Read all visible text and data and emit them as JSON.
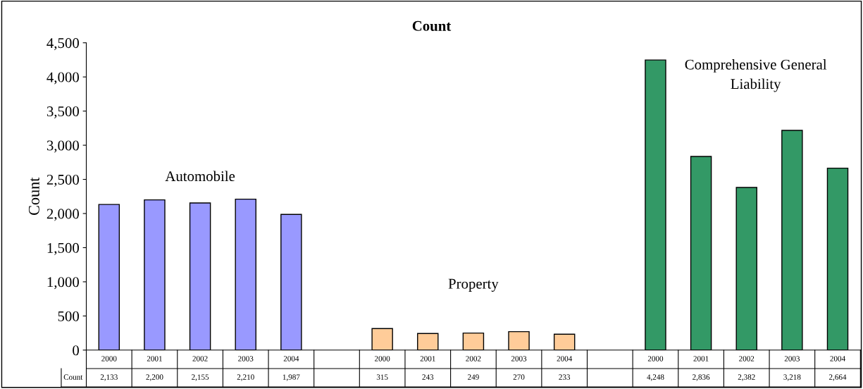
{
  "chart_data": {
    "type": "bar",
    "title": "Count",
    "ylabel": "Count",
    "categories": [
      "2000",
      "2001",
      "2002",
      "2003",
      "2004",
      null,
      "2000",
      "2001",
      "2002",
      "2003",
      "2004",
      null,
      "2000",
      "2001",
      "2002",
      "2003",
      "2004"
    ],
    "series": [
      {
        "name": "Count",
        "values": [
          2133,
          2200,
          2155,
          2210,
          1987,
          null,
          315,
          243,
          249,
          270,
          233,
          null,
          4248,
          2836,
          2382,
          3218,
          2664
        ],
        "value_labels": [
          "2,133",
          "2,200",
          "2,155",
          "2,210",
          "1,987",
          null,
          "315",
          "243",
          "249",
          "270",
          "233",
          null,
          "4,248",
          "2,836",
          "2,382",
          "3,218",
          "2,664"
        ],
        "colors": [
          "#9999ff",
          "#9999ff",
          "#9999ff",
          "#9999ff",
          "#9999ff",
          null,
          "#ffcc99",
          "#ffcc99",
          "#ffcc99",
          "#ffcc99",
          "#ffcc99",
          null,
          "#339966",
          "#339966",
          "#339966",
          "#339966",
          "#339966"
        ]
      }
    ],
    "ylim": [
      0,
      4500
    ],
    "yticks": [
      0,
      500,
      {
        "value": 1000,
        "label": "1,000"
      },
      {
        "value": 1500,
        "label": "1,500"
      },
      {
        "value": 2000,
        "label": "2,000"
      },
      {
        "value": 2500,
        "label": "2,500"
      },
      {
        "value": 3000,
        "label": "3,000"
      },
      {
        "value": 3500,
        "label": "3,500"
      },
      {
        "value": 4000,
        "label": "4,000"
      },
      {
        "value": 4500,
        "label": "4,500"
      }
    ],
    "grid": false,
    "legend": "bottom left",
    "annotations": [
      "Automobile",
      "Property",
      "Comprehensive General\nLiability"
    ]
  }
}
